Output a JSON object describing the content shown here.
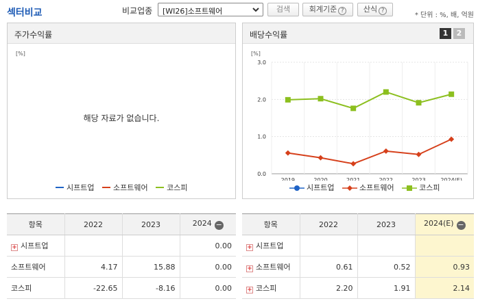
{
  "header": {
    "title": "섹터비교",
    "compare_label": "비교업종",
    "sector_value": "[WI26]소프트웨어",
    "search_label": "검색",
    "accounting_label": "회계기준",
    "calc_label": "산식",
    "help_glyph": "?",
    "unit_note": "* 단위 : %, 배, 억원"
  },
  "left_panel": {
    "title": "주가수익률",
    "unit": "[%]",
    "no_data": "해당 자료가 없습니다.",
    "legend": [
      "시프트업",
      "소프트웨어",
      "코스피"
    ]
  },
  "right_panel": {
    "title": "배당수익률",
    "tabs": [
      "1",
      "2"
    ],
    "unit": "[%]",
    "legend": [
      "시프트업",
      "소프트웨어",
      "코스피"
    ]
  },
  "colors": {
    "series1": "#1f63c6",
    "series2": "#d6401b",
    "series3": "#8cbf1f"
  },
  "chart_data": {
    "type": "line",
    "x": [
      "2019",
      "2020",
      "2021",
      "2022",
      "2023",
      "2024(E)"
    ],
    "ylim": [
      0,
      3
    ],
    "yticks": [
      "0.0",
      "1.0",
      "2.0",
      "3.0"
    ],
    "series": [
      {
        "name": "소프트웨어",
        "values": [
          0.56,
          0.43,
          0.27,
          0.61,
          0.52,
          0.93
        ]
      },
      {
        "name": "코스피",
        "values": [
          1.99,
          2.02,
          1.76,
          2.2,
          1.91,
          2.14
        ]
      }
    ]
  },
  "left_table": {
    "headers": [
      "항목",
      "2022",
      "2023",
      "2024"
    ],
    "rows": [
      {
        "label": "시프트업",
        "values": [
          "",
          "",
          "0.00"
        ]
      },
      {
        "label": "소프트웨어",
        "values": [
          "4.17",
          "15.88",
          "0.00"
        ]
      },
      {
        "label": "코스피",
        "values": [
          "-22.65",
          "-8.16",
          "0.00"
        ]
      }
    ]
  },
  "right_table": {
    "headers": [
      "항목",
      "2022",
      "2023",
      "2024(E)"
    ],
    "rows": [
      {
        "label": "시프트업",
        "values": [
          "",
          "",
          ""
        ]
      },
      {
        "label": "소프트웨어",
        "values": [
          "0.61",
          "0.52",
          "0.93"
        ]
      },
      {
        "label": "코스피",
        "values": [
          "2.20",
          "1.91",
          "2.14"
        ]
      }
    ]
  }
}
